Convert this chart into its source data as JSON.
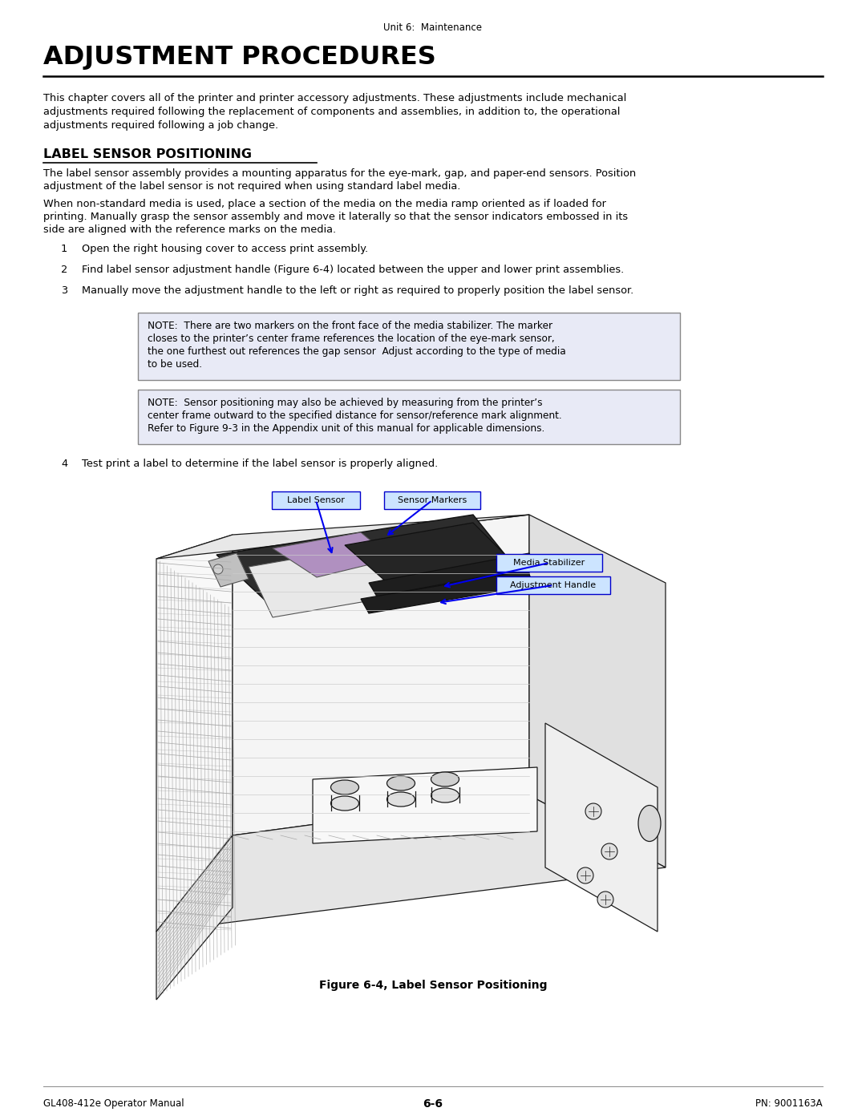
{
  "page_header": "Unit 6:  Maintenance",
  "main_title": "ADJUSTMENT PROCEDURES",
  "intro_lines": [
    "This chapter covers all of the printer and printer accessory adjustments. These adjustments include mechanical",
    "adjustments required following the replacement of components and assemblies, in addition to, the operational",
    "adjustments required following a job change."
  ],
  "section_title": "LABEL SENSOR POSITIONING",
  "section_para1_lines": [
    "The label sensor assembly provides a mounting apparatus for the eye-mark, gap, and paper-end sensors. Position",
    "adjustment of the label sensor is not required when using standard label media."
  ],
  "section_para2_lines": [
    "When non-standard media is used, place a section of the media on the media ramp oriented as if loaded for",
    "printing. Manually grasp the sensor assembly and move it laterally so that the sensor indicators embossed in its",
    "side are aligned with the reference marks on the media."
  ],
  "steps": [
    "Open the right housing cover to access print assembly.",
    "Find label sensor adjustment handle (Figure 6-4) located between the upper and lower print assemblies.",
    "Manually move the adjustment handle to the left or right as required to properly position the label sensor."
  ],
  "note1_lines": [
    "NOTE:  There are two markers on the front face of the media stabilizer. The marker",
    "closes to the printer’s center frame references the location of the eye-mark sensor,",
    "the one furthest out references the gap sensor  Adjust according to the type of media",
    "to be used."
  ],
  "note2_lines": [
    "NOTE:  Sensor positioning may also be achieved by measuring from the printer’s",
    "center frame outward to the specified distance for sensor/reference mark alignment.",
    "Refer to Figure 9-3 in the Appendix unit of this manual for applicable dimensions."
  ],
  "step4": "Test print a label to determine if the label sensor is properly aligned.",
  "figure_caption": "Figure 6-4, Label Sensor Positioning",
  "footer_left": "GL408-412e Operator Manual",
  "footer_center": "6-6",
  "footer_right": "PN: 9001163A",
  "bg_color": "#ffffff",
  "note_bg": "#e8eaf6",
  "note_border": "#888888",
  "ann_bg": "#cce4ff",
  "ann_border": "#0000cc",
  "arrow_color": "#0000ee",
  "body_color": "#f0f0f0",
  "hatch_color": "#aaaaaa",
  "dark_color": "#333333",
  "sensor_purple": "#b090c0",
  "dark_assembly": "#2d2d2d"
}
